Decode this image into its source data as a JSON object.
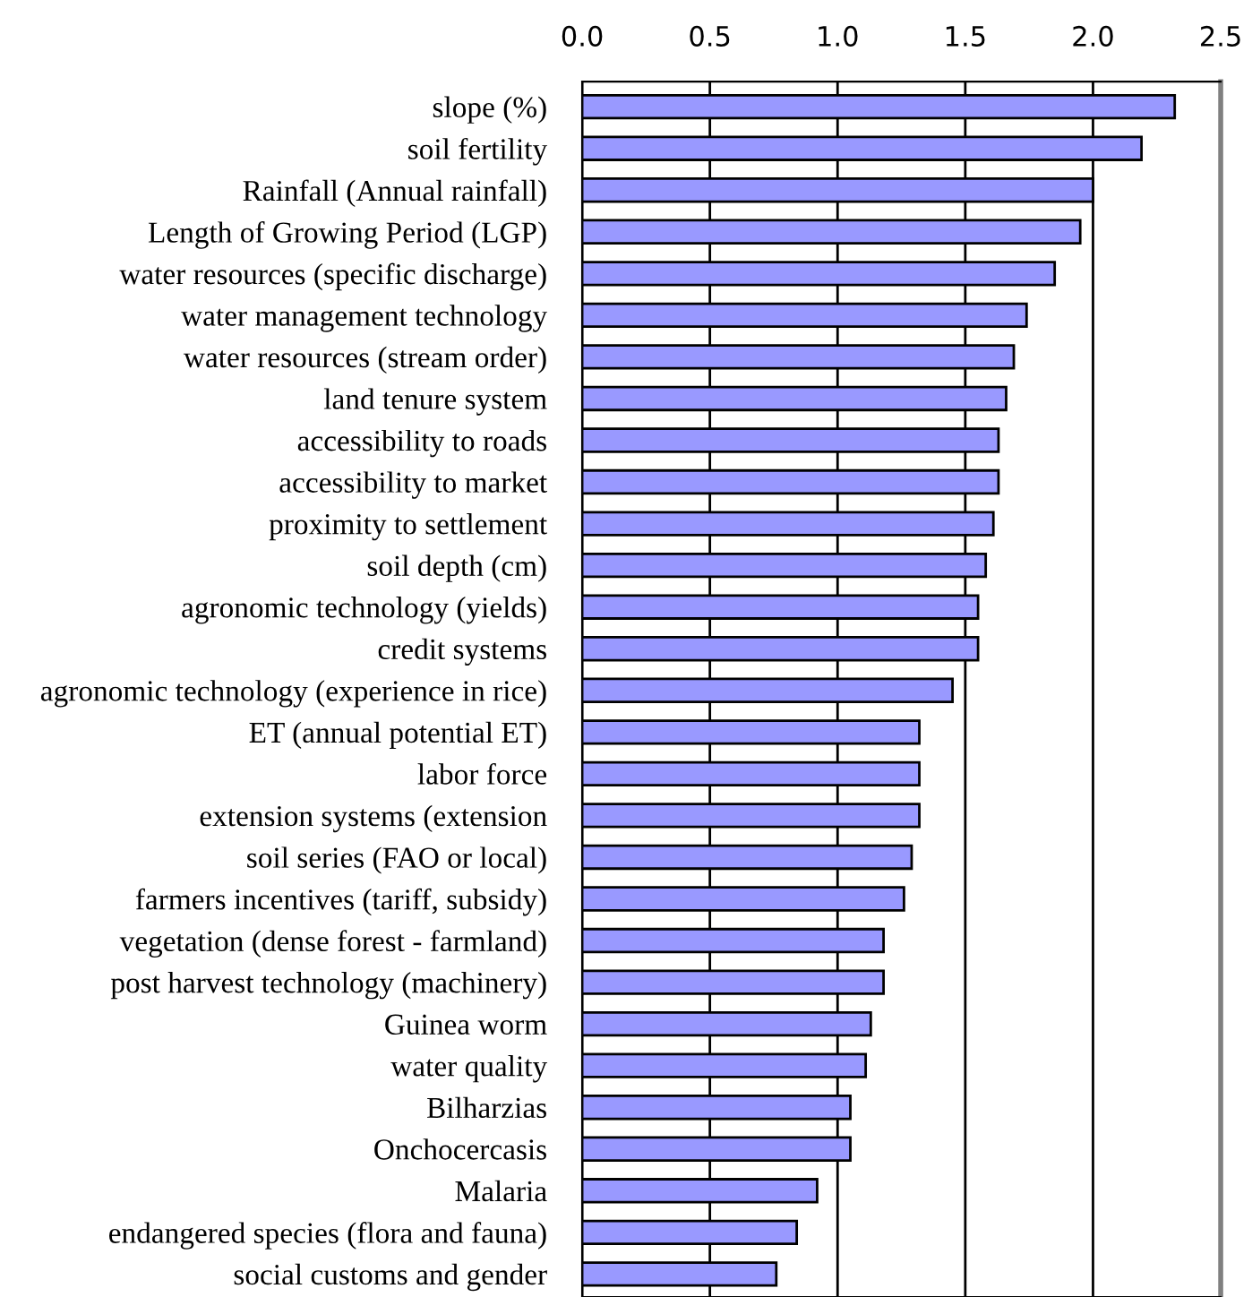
{
  "chart_data": {
    "type": "bar",
    "orientation": "horizontal",
    "categories": [
      "slope (%)",
      "soil fertility",
      "Rainfall (Annual rainfall)",
      "Length of Growing Period (LGP)",
      "water resources (specific discharge)",
      "water management technology",
      "water resources (stream order)",
      "land tenure system",
      "accessibility to roads",
      "accessibility to market",
      "proximity to settlement",
      "soil depth (cm)",
      "agronomic technology (yields)",
      "credit systems",
      "agronomic technology (experience in rice)",
      "ET (annual potential ET)",
      "labor force",
      "extension systems (extension",
      "soil series (FAO or local)",
      "farmers incentives (tariff, subsidy)",
      "vegetation (dense forest - farmland)",
      "post harvest technology (machinery)",
      "Guinea worm",
      "water quality",
      "Bilharzias",
      "Onchocercasis",
      "Malaria",
      "endangered species (flora and fauna)",
      "social customs and gender"
    ],
    "values": [
      2.32,
      2.19,
      2.0,
      1.95,
      1.85,
      1.74,
      1.69,
      1.66,
      1.63,
      1.63,
      1.61,
      1.58,
      1.55,
      1.55,
      1.45,
      1.32,
      1.32,
      1.32,
      1.29,
      1.26,
      1.18,
      1.18,
      1.13,
      1.11,
      1.05,
      1.05,
      0.92,
      0.84,
      0.76
    ],
    "color": "#9999ff",
    "xlim": [
      0,
      2.5
    ],
    "xticks": [
      {
        "value": 0,
        "label": "0.0"
      },
      0.5,
      {
        "value": 1,
        "label": "1.0"
      },
      1.5,
      {
        "value": 2,
        "label": "2.0"
      },
      2.5
    ],
    "grid": "x"
  }
}
